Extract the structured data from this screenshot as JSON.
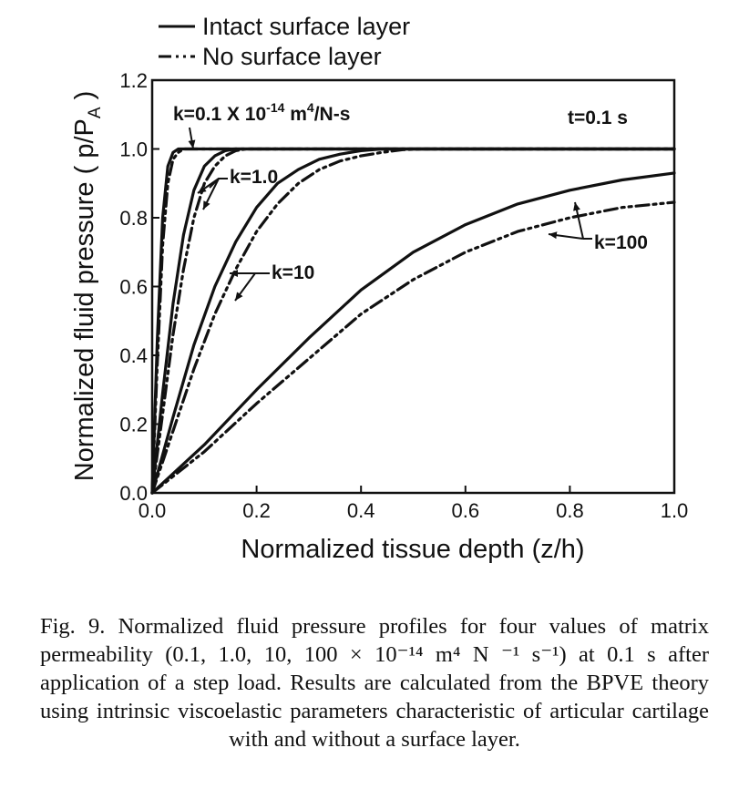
{
  "chart_data": {
    "type": "line",
    "xlabel": "Normalized tissue depth (z/h)",
    "ylabel": "Normalized fluid pressure ( p/P",
    "ylabel_sub": "A",
    "ylabel_end": " )",
    "xlim": [
      0.0,
      1.0
    ],
    "ylim": [
      0.0,
      1.2
    ],
    "x_ticks": [
      0.0,
      0.2,
      0.4,
      0.6,
      0.8,
      1.0
    ],
    "x_tick_labels": [
      "0.0",
      "0.2",
      "0.4",
      "0.6",
      "0.8",
      "1.0"
    ],
    "y_ticks": [
      0.0,
      0.2,
      0.4,
      0.6,
      0.8,
      1.0,
      1.2
    ],
    "y_tick_labels": [
      "0.0",
      "0.2",
      "0.4",
      "0.6",
      "0.8",
      "1.0",
      "1.2"
    ],
    "grid": false,
    "legend": [
      {
        "label": "Intact surface layer",
        "style": "solid"
      },
      {
        "label": "No surface layer",
        "style": "dash-dot-dot"
      }
    ],
    "annotations": {
      "k_first": "k=0.1 X 10",
      "k_first_exp": "-14",
      "k_first_units": " m",
      "k_first_units_exp": "4",
      "k_first_units_end": "/N-s",
      "time": "t=0.1 s",
      "k2": "k=1.0",
      "k3": "k=10",
      "k4": "k=100"
    },
    "series": [
      {
        "k": "0.1",
        "style": "solid",
        "x": [
          0,
          0.01,
          0.02,
          0.03,
          0.04,
          0.05,
          0.06,
          0.08,
          1.0
        ],
        "y": [
          0,
          0.45,
          0.8,
          0.95,
          0.99,
          1.0,
          1.0,
          1.0,
          1.0
        ]
      },
      {
        "k": "0.1",
        "style": "dash-dot-dot",
        "x": [
          0,
          0.01,
          0.02,
          0.03,
          0.04,
          0.05,
          0.06,
          0.07,
          0.09,
          1.0
        ],
        "y": [
          0,
          0.38,
          0.72,
          0.9,
          0.97,
          0.99,
          1.0,
          1.0,
          1.0,
          1.0
        ]
      },
      {
        "k": "1.0",
        "style": "solid",
        "x": [
          0,
          0.02,
          0.04,
          0.06,
          0.08,
          0.1,
          0.12,
          0.14,
          0.16,
          1.0
        ],
        "y": [
          0,
          0.29,
          0.55,
          0.75,
          0.88,
          0.95,
          0.98,
          0.995,
          1.0,
          1.0
        ]
      },
      {
        "k": "1.0",
        "style": "dash-dot-dot",
        "x": [
          0,
          0.02,
          0.04,
          0.06,
          0.08,
          0.1,
          0.12,
          0.14,
          0.16,
          0.18,
          1.0
        ],
        "y": [
          0,
          0.23,
          0.46,
          0.65,
          0.8,
          0.9,
          0.95,
          0.98,
          0.995,
          1.0,
          1.0
        ]
      },
      {
        "k": "10",
        "style": "solid",
        "x": [
          0,
          0.04,
          0.08,
          0.12,
          0.16,
          0.2,
          0.24,
          0.28,
          0.32,
          0.36,
          0.4,
          0.44,
          0.48,
          1.0
        ],
        "y": [
          0,
          0.22,
          0.43,
          0.6,
          0.73,
          0.83,
          0.9,
          0.94,
          0.97,
          0.985,
          0.995,
          1.0,
          1.0,
          1.0
        ]
      },
      {
        "k": "10",
        "style": "dash-dot-dot",
        "x": [
          0,
          0.04,
          0.08,
          0.12,
          0.16,
          0.2,
          0.24,
          0.28,
          0.32,
          0.36,
          0.4,
          0.44,
          0.48,
          0.52,
          1.0
        ],
        "y": [
          0,
          0.18,
          0.36,
          0.52,
          0.65,
          0.76,
          0.84,
          0.9,
          0.94,
          0.965,
          0.98,
          0.99,
          0.998,
          1.0,
          1.0
        ]
      },
      {
        "k": "100",
        "style": "solid",
        "x": [
          0,
          0.1,
          0.2,
          0.3,
          0.4,
          0.5,
          0.6,
          0.7,
          0.8,
          0.9,
          1.0
        ],
        "y": [
          0,
          0.14,
          0.3,
          0.45,
          0.59,
          0.7,
          0.78,
          0.84,
          0.88,
          0.91,
          0.93
        ]
      },
      {
        "k": "100",
        "style": "dash-dot-dot",
        "x": [
          0,
          0.1,
          0.2,
          0.3,
          0.4,
          0.5,
          0.6,
          0.7,
          0.8,
          0.9,
          1.0
        ],
        "y": [
          0,
          0.12,
          0.26,
          0.39,
          0.52,
          0.62,
          0.7,
          0.76,
          0.8,
          0.83,
          0.845
        ]
      }
    ]
  },
  "caption": "Fig. 9. Normalized fluid pressure profiles for four values of matrix permeability (0.1, 1.0, 10, 100 × 10⁻¹⁴ m⁴ N ⁻¹ s⁻¹) at 0.1 s after application of a step load. Results are calculated from the BPVE theory using intrinsic viscoelastic parameters characteristic of articular cartilage with and without a surface layer."
}
